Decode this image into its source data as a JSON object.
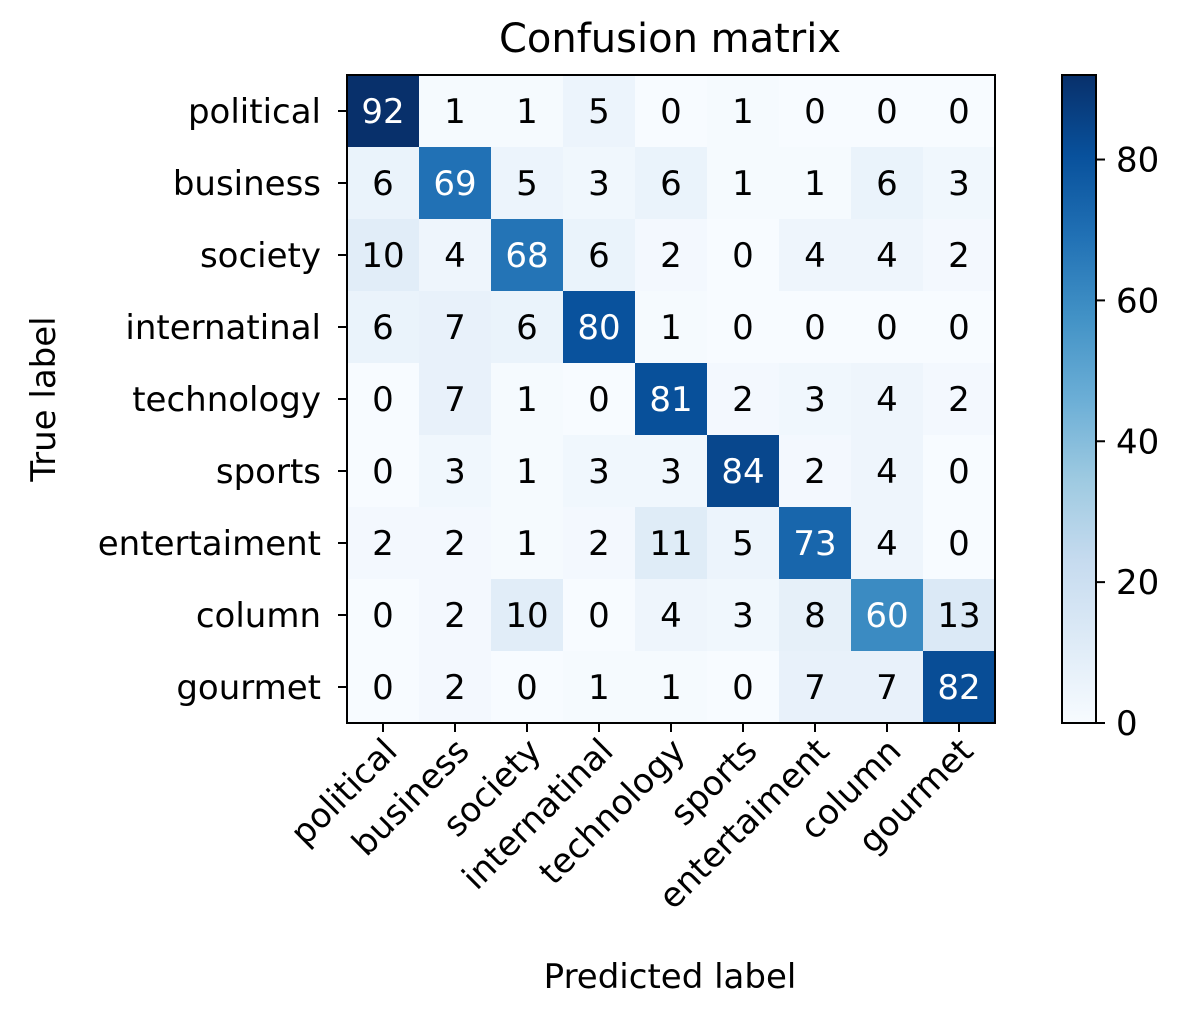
{
  "chart_data": {
    "type": "heatmap",
    "title": "Confusion matrix",
    "xlabel": "Predicted label",
    "ylabel": "True label",
    "row_labels": [
      "political",
      "business",
      "society",
      "internatinal",
      "technology",
      "sports",
      "entertaiment",
      "column",
      "gourmet"
    ],
    "col_labels": [
      "political",
      "business",
      "society",
      "internatinal",
      "technology",
      "sports",
      "entertaiment",
      "column",
      "gourmet"
    ],
    "values": [
      [
        92,
        1,
        1,
        5,
        0,
        1,
        0,
        0,
        0
      ],
      [
        6,
        69,
        5,
        3,
        6,
        1,
        1,
        6,
        3
      ],
      [
        10,
        4,
        68,
        6,
        2,
        0,
        4,
        4,
        2
      ],
      [
        6,
        7,
        6,
        80,
        1,
        0,
        0,
        0,
        0
      ],
      [
        0,
        7,
        1,
        0,
        81,
        2,
        3,
        4,
        2
      ],
      [
        0,
        3,
        1,
        3,
        3,
        84,
        2,
        4,
        0
      ],
      [
        2,
        2,
        1,
        2,
        11,
        5,
        73,
        4,
        0
      ],
      [
        0,
        2,
        10,
        0,
        4,
        3,
        8,
        60,
        13
      ],
      [
        0,
        2,
        0,
        1,
        1,
        0,
        7,
        7,
        82
      ]
    ],
    "colormap": "Blues",
    "color_min": "#f7fbff",
    "color_max": "#08306b",
    "vmin": 0,
    "vmax": 92,
    "colorbar_ticks": [
      0,
      20,
      40,
      60,
      80
    ]
  }
}
